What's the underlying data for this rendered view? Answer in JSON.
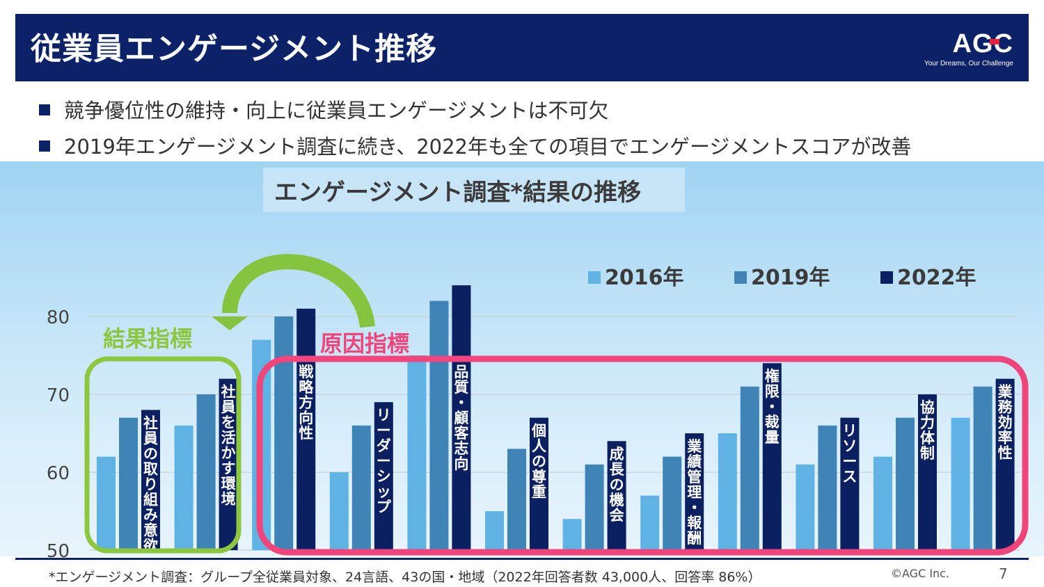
{
  "header": {
    "title": "従業員エンゲージメント推移",
    "logo_text": "AGC",
    "logo_tagline": "Your Dreams, Our Challenge"
  },
  "bullets": [
    "競争優位性の維持・向上に従業員エンゲージメントは不可欠",
    "2019年エンゲージメント調査に続き、2022年も全ての項目でエンゲージメントスコアが改善"
  ],
  "annotations": {
    "result_label": "結果指標",
    "cause_label": "原因指標",
    "result_color": "#8dc63f",
    "cause_color": "#f0457a"
  },
  "footer": {
    "footnote": "*エンゲージメント調査：グループ全従業員対象、24言語、43の国・地域（2022年回答者数 43,000人、回答率 86%）",
    "copyright": "©AGC Inc.",
    "page_number": "7"
  },
  "chart_data": {
    "type": "bar",
    "title": "エンゲージメント調査*結果の推移",
    "xlabel": "",
    "ylabel": "",
    "ylim": [
      50,
      85
    ],
    "yticks": [
      50,
      60,
      70,
      80
    ],
    "ytick_labels": [
      "50",
      "60",
      "70",
      "80"
    ],
    "grid": true,
    "legend_position": "top-right",
    "categories": [
      "社員の取り組み意欲",
      "社員を活かす環境",
      "戦略方向性",
      "リーダーシップ",
      "品質・顧客志向",
      "個人の尊重",
      "成長の機会",
      "業績管理・報酬",
      "権限・裁量",
      "リソース",
      "協力体制",
      "業務効率性"
    ],
    "series": [
      {
        "name": "2016年",
        "color": "#5fb3e4",
        "values": [
          62,
          66,
          77,
          60,
          75,
          55,
          54,
          57,
          65,
          61,
          62,
          67
        ]
      },
      {
        "name": "2019年",
        "color": "#3f84b6",
        "values": [
          67,
          70,
          80,
          66,
          82,
          63,
          61,
          62,
          71,
          66,
          67,
          71
        ]
      },
      {
        "name": "2022年",
        "color": "#0b2060",
        "values": [
          68,
          72,
          81,
          69,
          84,
          67,
          64,
          65,
          74,
          67,
          70,
          72
        ]
      }
    ]
  }
}
